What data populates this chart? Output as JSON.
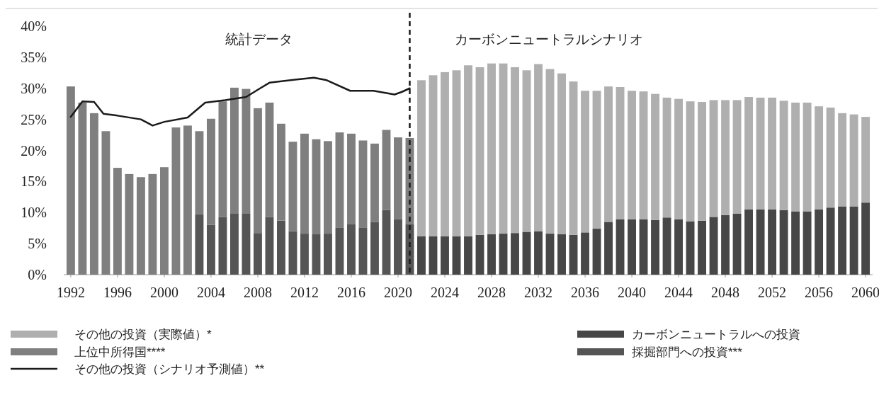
{
  "chart_data": {
    "type": "bar",
    "stacked": true,
    "legend": "bottom",
    "grid": false,
    "annotations": [
      "統計データ",
      "カーボンニュートラルシナリオ"
    ],
    "x": [
      1992,
      1993,
      1994,
      1995,
      1996,
      1997,
      1998,
      1999,
      2000,
      2001,
      2002,
      2003,
      2004,
      2005,
      2006,
      2007,
      2008,
      2009,
      2010,
      2011,
      2012,
      2013,
      2014,
      2015,
      2016,
      2017,
      2018,
      2019,
      2020,
      2021,
      2022,
      2023,
      2024,
      2025,
      2026,
      2027,
      2028,
      2029,
      2030,
      2031,
      2032,
      2033,
      2034,
      2035,
      2036,
      2037,
      2038,
      2039,
      2040,
      2041,
      2042,
      2043,
      2044,
      2045,
      2046,
      2047,
      2048,
      2049,
      2050,
      2051,
      2052,
      2053,
      2054,
      2055,
      2056,
      2057,
      2058,
      2059,
      2060
    ],
    "xlim": [
      1991.4,
      2060.6
    ],
    "xticks": [
      1992,
      1996,
      2000,
      2004,
      2008,
      2012,
      2016,
      2020,
      2024,
      2028,
      2032,
      2036,
      2040,
      2044,
      2048,
      2052,
      2056,
      2060
    ],
    "ylim": [
      0,
      40
    ],
    "yticks": [
      {
        "value": 0,
        "label": "0%"
      },
      {
        "value": 5,
        "label": "5%"
      },
      {
        "value": 10,
        "label": "10%"
      },
      {
        "value": 15,
        "label": "15%"
      },
      {
        "value": 20,
        "label": "20%"
      },
      {
        "value": 25,
        "label": "25%"
      },
      {
        "value": 30,
        "label": "30%"
      },
      {
        "value": 35,
        "label": "35%"
      },
      {
        "value": 40,
        "label": "40%"
      }
    ],
    "ref_lines": [
      {
        "axis": "x",
        "value": 2021,
        "color": "#1a1a1a",
        "line_style": "dashed"
      }
    ],
    "series": [
      {
        "name": "採掘部門への投資***",
        "color": "#555555",
        "values": [
          null,
          null,
          null,
          null,
          null,
          null,
          null,
          null,
          null,
          null,
          null,
          9.7,
          8.0,
          9.3,
          9.8,
          9.8,
          6.7,
          9.3,
          8.7,
          7.0,
          6.6,
          6.5,
          6.6,
          7.6,
          8.1,
          7.6,
          8.5,
          10.4,
          8.9,
          8.1,
          null,
          null,
          null,
          null,
          null,
          null,
          null,
          null,
          null,
          null,
          null,
          null,
          null,
          null,
          null,
          null,
          null,
          null,
          null,
          null,
          null,
          null,
          null,
          null,
          null,
          null,
          null,
          null,
          null,
          null,
          null,
          null,
          null,
          null,
          null,
          null,
          null,
          null,
          null
        ]
      },
      {
        "name": "カーボンニュートラルへの投資",
        "color": "#474747",
        "values": [
          null,
          null,
          null,
          null,
          null,
          null,
          null,
          null,
          null,
          null,
          null,
          null,
          null,
          null,
          null,
          null,
          null,
          null,
          null,
          null,
          null,
          null,
          null,
          null,
          null,
          null,
          null,
          null,
          null,
          null,
          6.2,
          6.2,
          6.2,
          6.2,
          6.2,
          6.4,
          6.5,
          6.6,
          6.7,
          6.9,
          7.0,
          6.6,
          6.5,
          6.4,
          6.8,
          7.4,
          8.5,
          8.9,
          8.9,
          8.9,
          8.8,
          9.2,
          8.9,
          8.6,
          8.7,
          9.3,
          9.6,
          9.8,
          10.5,
          10.5,
          10.5,
          10.4,
          10.2,
          10.2,
          10.5,
          10.8,
          11.0,
          11.0,
          11.6
        ]
      },
      {
        "name": "その他の投資（シナリオ予測値）**",
        "type": "line",
        "color": "#1a1a1a",
        "x": [
          1992,
          1993,
          1994,
          1994.8,
          1996,
          1998,
          1999,
          2000,
          2002,
          2003.5,
          2005.2,
          2007,
          2008.2,
          2009,
          2011.2,
          2012.8,
          2013.9,
          2015.9,
          2017.9,
          2019.7,
          2020.3,
          2021
        ],
        "values": [
          25.4,
          27.9,
          27.8,
          25.9,
          25.6,
          25.0,
          24.0,
          24.6,
          25.3,
          27.7,
          28.1,
          28.6,
          30.0,
          30.9,
          31.4,
          31.7,
          31.3,
          29.6,
          29.6,
          29.0,
          29.4,
          30.0
        ]
      },
      {
        "name": "上位中所得国****",
        "color": "#7f7f7f",
        "values": [
          30.3,
          27.7,
          26.0,
          23.1,
          17.2,
          16.2,
          15.7,
          16.2,
          17.3,
          23.7,
          24.0,
          13.4,
          17.1,
          18.6,
          20.3,
          20.1,
          20.1,
          18.4,
          15.6,
          14.4,
          16.1,
          15.3,
          14.9,
          15.3,
          14.6,
          14.0,
          12.6,
          12.9,
          13.2,
          13.9,
          null,
          null,
          null,
          null,
          null,
          null,
          null,
          null,
          null,
          null,
          null,
          null,
          null,
          null,
          null,
          null,
          null,
          null,
          null,
          null,
          null,
          null,
          null,
          null,
          null,
          null,
          null,
          null,
          null,
          null,
          null,
          null,
          null,
          null,
          null,
          null,
          null,
          null,
          null
        ]
      },
      {
        "name": "その他の投資（実際値）*",
        "color": "#afafaf",
        "values": [
          null,
          null,
          null,
          null,
          null,
          null,
          null,
          null,
          null,
          null,
          null,
          null,
          null,
          null,
          null,
          null,
          null,
          null,
          null,
          null,
          null,
          null,
          null,
          null,
          null,
          null,
          null,
          null,
          null,
          null,
          25.1,
          25.9,
          26.4,
          26.7,
          27.5,
          27.0,
          27.5,
          27.4,
          26.7,
          26.0,
          26.9,
          26.5,
          25.9,
          24.7,
          22.8,
          22.2,
          21.8,
          21.3,
          20.7,
          20.6,
          20.3,
          19.3,
          19.4,
          19.3,
          19.1,
          18.8,
          18.5,
          18.3,
          18.1,
          18.0,
          18.0,
          17.6,
          17.5,
          17.5,
          16.6,
          16.1,
          15.0,
          14.8,
          13.8
        ]
      }
    ]
  }
}
